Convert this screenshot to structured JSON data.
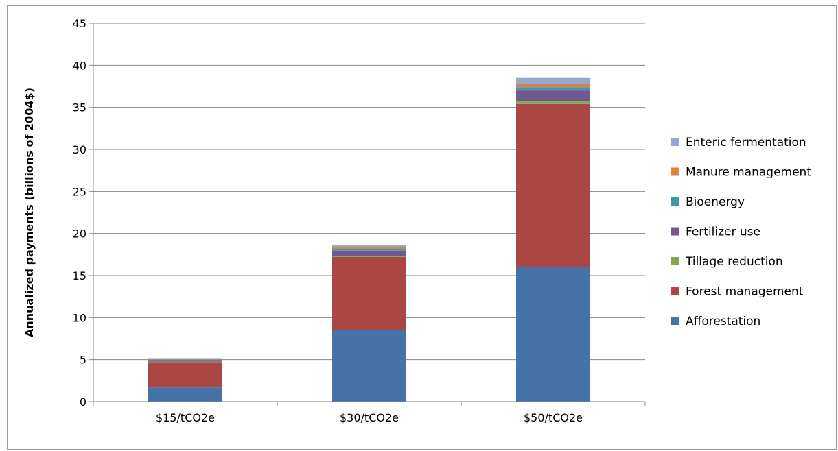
{
  "caption": "",
  "chart_data": {
    "type": "bar",
    "stacked": true,
    "categories": [
      "$15/tCO2e",
      "$30/tCO2e",
      "$50/tCO2e"
    ],
    "series": [
      {
        "name": "Afforestation",
        "color": "#4572a7",
        "values": [
          1.7,
          8.5,
          16.0
        ]
      },
      {
        "name": "Forest management",
        "color": "#aa4643",
        "values": [
          3.0,
          8.7,
          19.4
        ]
      },
      {
        "name": "Tillage reduction",
        "color": "#89a54e",
        "values": [
          0.05,
          0.15,
          0.3
        ]
      },
      {
        "name": "Fertilizer use",
        "color": "#71588f",
        "values": [
          0.2,
          0.6,
          1.3
        ]
      },
      {
        "name": "Bioenergy",
        "color": "#4198af",
        "values": [
          0.05,
          0.2,
          0.4
        ]
      },
      {
        "name": "Manure management",
        "color": "#db843d",
        "values": [
          0.05,
          0.2,
          0.4
        ]
      },
      {
        "name": "Enteric fermentation",
        "color": "#93a9cf",
        "values": [
          0.05,
          0.25,
          0.7
        ]
      }
    ],
    "ylabel": "Annualized payments (billions of 2004$)",
    "xlabel": "",
    "ylim": [
      0,
      45
    ],
    "yticks": [
      0,
      5,
      10,
      15,
      20,
      25,
      30,
      35,
      40,
      45
    ],
    "grid": true,
    "legend_position": "right"
  }
}
